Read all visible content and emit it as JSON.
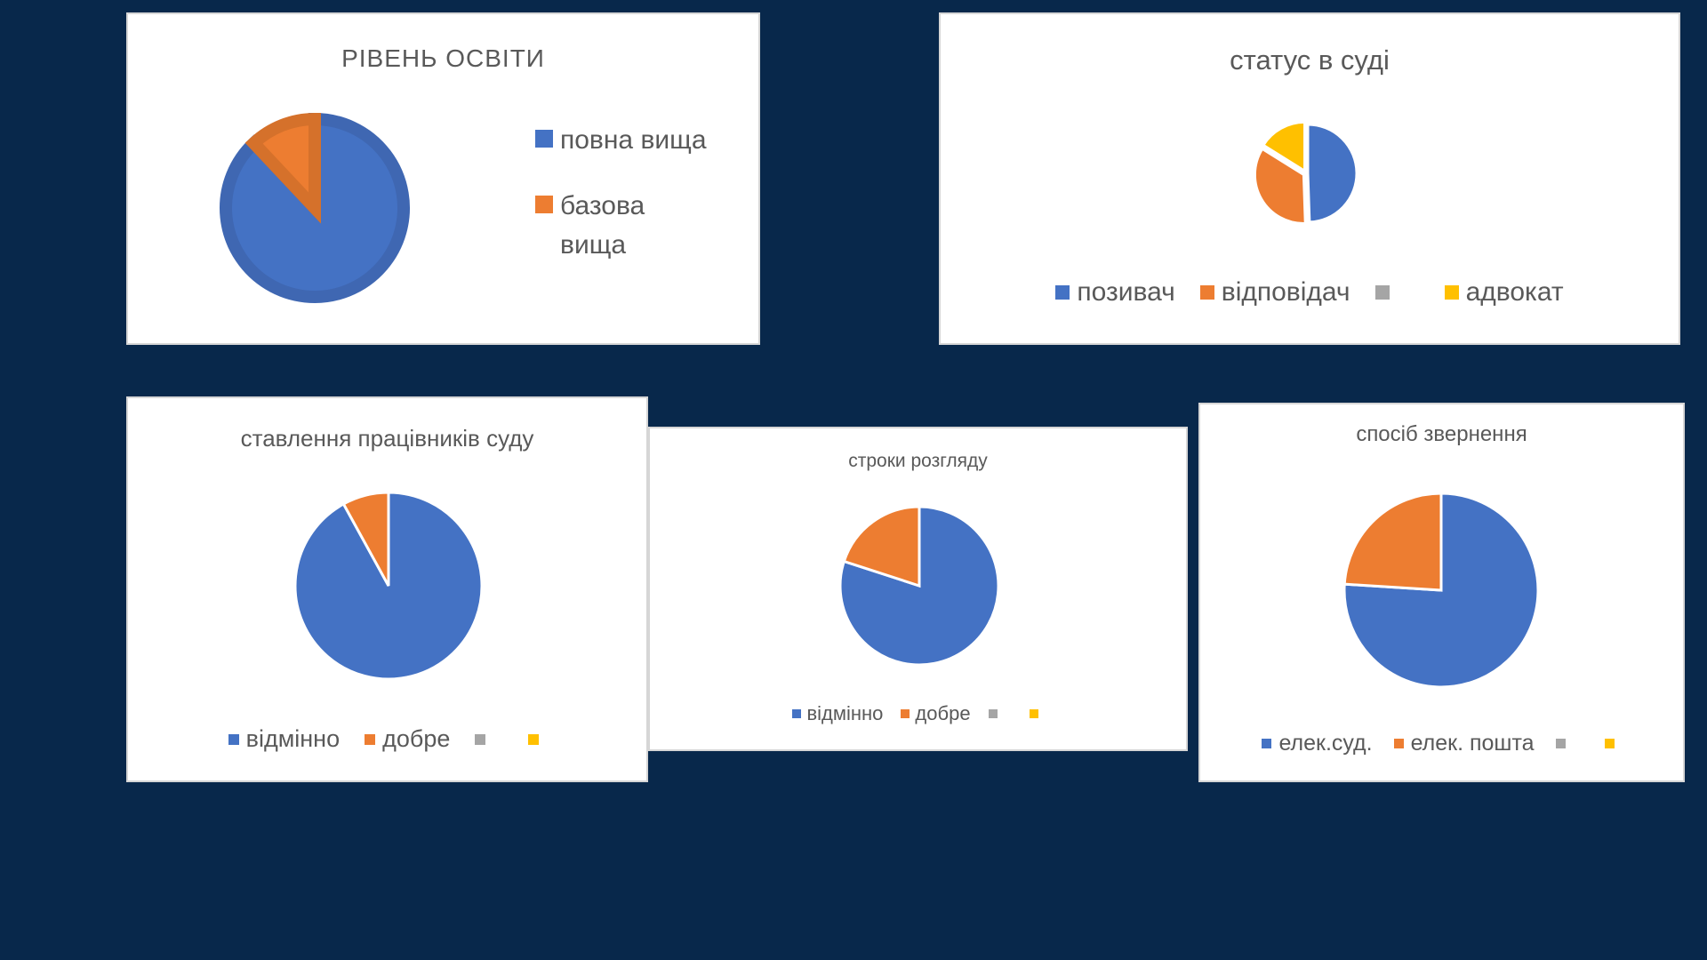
{
  "colors": {
    "background": "#08284b",
    "blue": "#4472c4",
    "orange": "#ed7d31",
    "gray": "#a5a5a5",
    "yellow": "#ffc000",
    "dark_blue": "#3f67b2",
    "dark_orange": "#d5712b"
  },
  "chart_data": [
    {
      "type": "pie",
      "title": "РІВЕНЬ ОСВІТИ",
      "categories": [
        "повна вища",
        "базова вища"
      ],
      "values": [
        88,
        12
      ],
      "legend": "right"
    },
    {
      "type": "pie",
      "title": "статус в суді",
      "categories": [
        "позивач",
        "відповідач",
        "",
        "адвокат"
      ],
      "values": [
        46,
        32,
        0,
        15
      ],
      "legend": "bottom"
    },
    {
      "type": "pie",
      "title": "ставлення працівників суду",
      "categories": [
        "відмінно",
        "добре",
        "",
        ""
      ],
      "values": [
        92,
        8,
        0,
        0
      ],
      "legend": "bottom"
    },
    {
      "type": "pie",
      "title": "строки розгляду",
      "categories": [
        "відмінно",
        "добре",
        "",
        ""
      ],
      "values": [
        80,
        20,
        0,
        0
      ],
      "legend": "bottom"
    },
    {
      "type": "pie",
      "title": "спосіб звернення",
      "categories": [
        "елек.суд.",
        "елек. пошта",
        "",
        ""
      ],
      "values": [
        76,
        24,
        0,
        0
      ],
      "legend": "bottom"
    }
  ]
}
